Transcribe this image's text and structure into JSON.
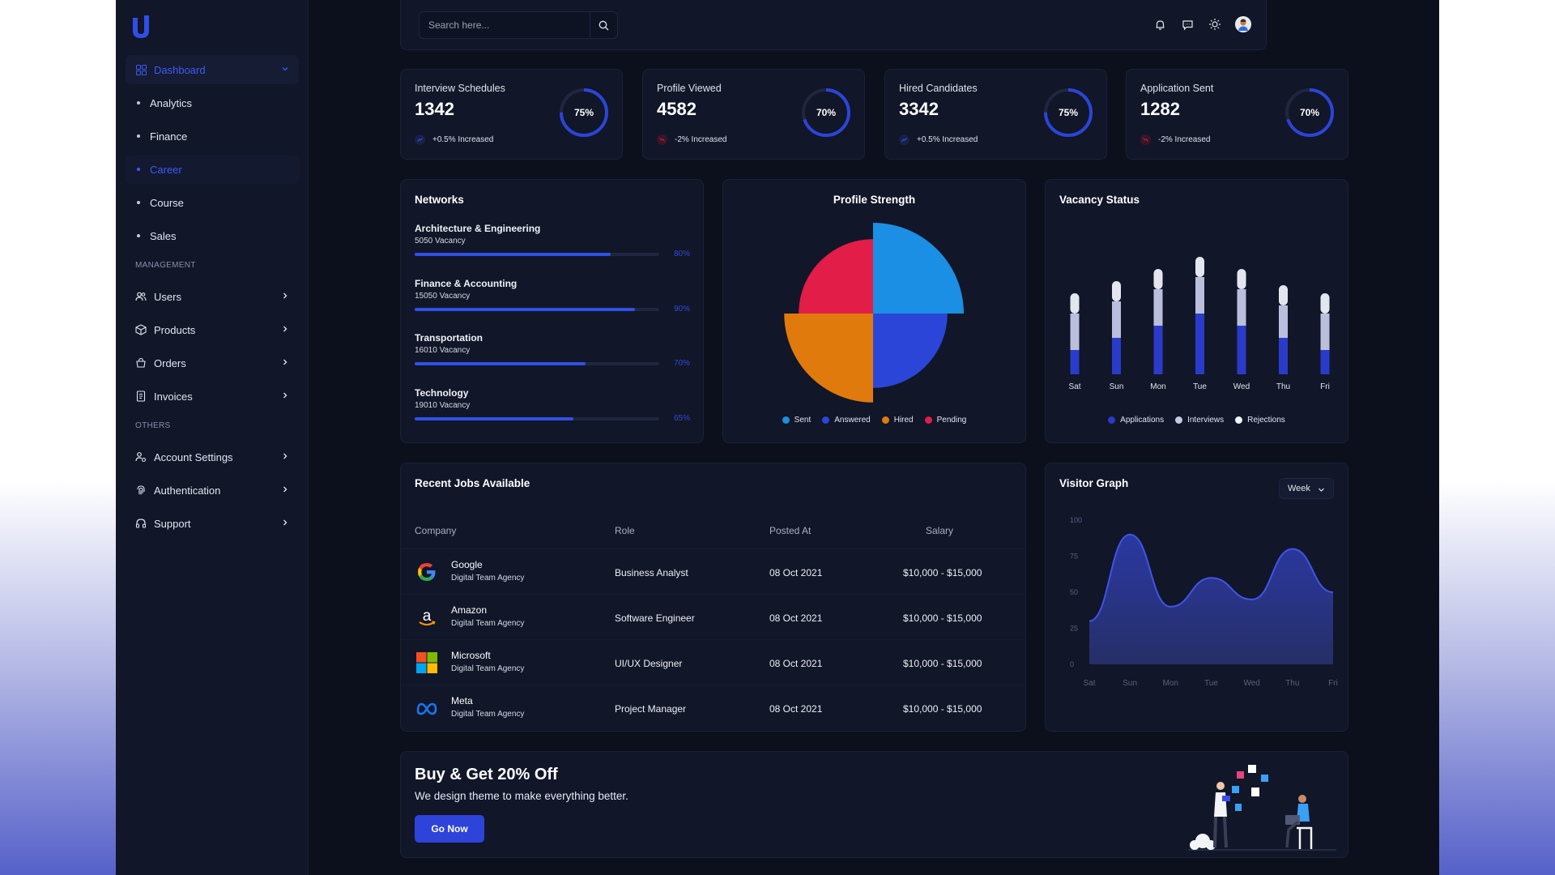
{
  "search": {
    "placeholder": "Search here..."
  },
  "sidebar": {
    "dashboard": "Dashboard",
    "sub_items": [
      "Analytics",
      "Finance",
      "Career",
      "Course",
      "Sales"
    ],
    "section_management": "MANAGEMENT",
    "management": [
      "Users",
      "Products",
      "Orders",
      "Invoices"
    ],
    "section_others": "OTHERS",
    "others": [
      "Account Settings",
      "Authentication",
      "Support"
    ]
  },
  "stats": [
    {
      "title": "Interview Schedules",
      "value": "1342",
      "percent": 75,
      "percent_label": "75%",
      "delta": "+0.5% Increased",
      "trend": "up"
    },
    {
      "title": "Profile Viewed",
      "value": "4582",
      "percent": 70,
      "percent_label": "70%",
      "delta": "-2% Increased",
      "trend": "down"
    },
    {
      "title": "Hired Candidates",
      "value": "3342",
      "percent": 75,
      "percent_label": "75%",
      "delta": "+0.5% Increased",
      "trend": "up"
    },
    {
      "title": "Application Sent",
      "value": "1282",
      "percent": 70,
      "percent_label": "70%",
      "delta": "-2% Increased",
      "trend": "down"
    }
  ],
  "networks": {
    "title": "Networks",
    "items": [
      {
        "name": "Architecture & Engineering",
        "sub": "5050 Vacancy",
        "percent": 80,
        "label": "80%"
      },
      {
        "name": "Finance & Accounting",
        "sub": "15050 Vacancy",
        "percent": 90,
        "label": "90%"
      },
      {
        "name": "Transportation",
        "sub": "16010 Vacancy",
        "percent": 70,
        "label": "70%"
      },
      {
        "name": "Technology",
        "sub": "19010 Vacancy",
        "percent": 65,
        "label": "65%"
      }
    ]
  },
  "profile_strength": {
    "title": "Profile Strength",
    "legend": [
      "Sent",
      "Answered",
      "Hired",
      "Pending"
    ]
  },
  "vacancy": {
    "title": "Vacancy Status",
    "legend": [
      "Applications",
      "Interviews",
      "Rejections"
    ]
  },
  "jobs": {
    "title": "Recent Jobs Available",
    "headers": [
      "Company",
      "Role",
      "Posted At",
      "Salary"
    ],
    "rows": [
      {
        "company": "Google",
        "sub": "Digital Team Agency",
        "role": "Business Analyst",
        "date": "08 Oct 2021",
        "salary": "$10,000 - $15,000",
        "logo": "google-logo-icon"
      },
      {
        "company": "Amazon",
        "sub": "Digital Team Agency",
        "role": "Software Engineer",
        "date": "08 Oct 2021",
        "salary": "$10,000 - $15,000",
        "logo": "amazon-logo-icon"
      },
      {
        "company": "Microsoft",
        "sub": "Digital Team Agency",
        "role": "UI/UX Designer",
        "date": "08 Oct 2021",
        "salary": "$10,000 - $15,000",
        "logo": "microsoft-logo-icon"
      },
      {
        "company": "Meta",
        "sub": "Digital Team Agency",
        "role": "Project Manager",
        "date": "08 Oct 2021",
        "salary": "$10,000 - $15,000",
        "logo": "meta-logo-icon"
      }
    ]
  },
  "visitor": {
    "title": "Visitor Graph",
    "range": "Week"
  },
  "promo": {
    "title": "Buy & Get 20% Off",
    "subtitle": "We design theme to make everything better.",
    "button": "Go Now"
  },
  "colors": {
    "accent": "#3d5bf5",
    "sent": "#1a8fe3",
    "answered": "#2b45d8",
    "hired": "#e07a0c",
    "pending": "#e11d48",
    "applications": "#2b3bc9",
    "interviews": "#b9bfdc",
    "rejections": "#e4e6ef",
    "up": "#2f4bdb",
    "down": "#e11d48"
  },
  "chart_data": [
    {
      "type": "pie",
      "title": "Profile Strength",
      "categories": [
        "Sent",
        "Answered",
        "Hired",
        "Pending"
      ],
      "values": [
        25,
        25,
        25,
        25
      ],
      "relative_radius": [
        1.0,
        0.82,
        0.98,
        0.82
      ],
      "legend": "bottom"
    },
    {
      "type": "bar",
      "title": "Vacancy Status",
      "stacked": true,
      "categories": [
        "Sat",
        "Sun",
        "Mon",
        "Tue",
        "Wed",
        "Thu",
        "Fri"
      ],
      "series": [
        {
          "name": "Applications",
          "values": [
            30,
            45,
            60,
            75,
            60,
            45,
            30
          ]
        },
        {
          "name": "Interviews",
          "values": [
            45,
            45,
            45,
            45,
            45,
            40,
            45
          ]
        },
        {
          "name": "Rejections",
          "values": [
            25,
            25,
            25,
            25,
            25,
            25,
            25
          ]
        }
      ],
      "legend": "bottom"
    },
    {
      "type": "area",
      "title": "Visitor Graph",
      "categories": [
        "Sat",
        "Sun",
        "Mon",
        "Tue",
        "Wed",
        "Thu",
        "Fri"
      ],
      "values": [
        30,
        90,
        40,
        60,
        45,
        80,
        50
      ],
      "ylim": [
        0,
        100
      ],
      "yticks": [
        0,
        25,
        50,
        75,
        100
      ],
      "grid": false
    }
  ]
}
